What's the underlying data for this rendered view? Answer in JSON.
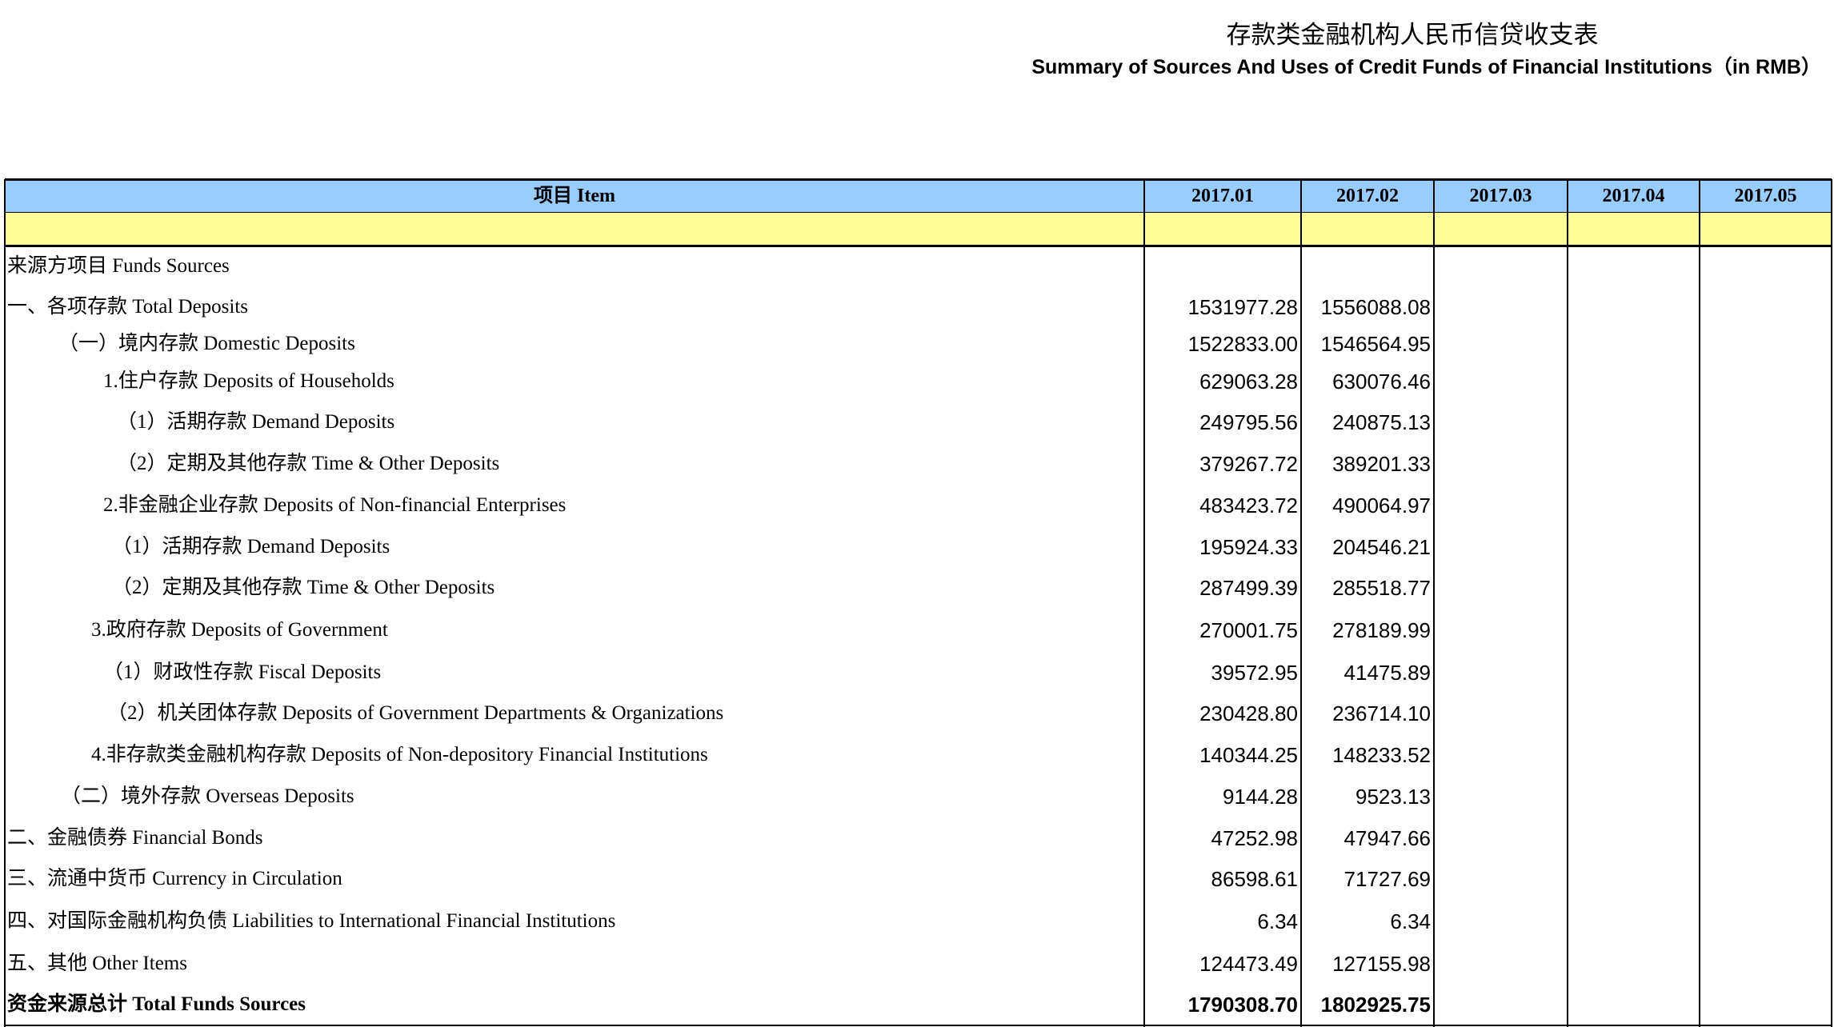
{
  "header": {
    "title": "存款类金融机构人民币信贷收支表",
    "subtitle": "Summary of Sources And Uses of Credit Funds of Financial Institutions（in RMB）"
  },
  "table": {
    "columns": [
      "项目 Item",
      "2017.01",
      "2017.02",
      "2017.03",
      "2017.04",
      "2017.05"
    ],
    "rows": [
      {
        "label": "来源方项目 Funds Sources"
      },
      {
        "label": "一、各项存款 Total Deposits",
        "values": [
          "1531977.28",
          "1556088.08"
        ]
      },
      {
        "label": "（一）境内存款 Domestic Deposits",
        "values": [
          "1522833.00",
          "1546564.95"
        ]
      },
      {
        "label": "1.住户存款 Deposits of Households",
        "values": [
          "629063.28",
          "630076.46"
        ]
      },
      {
        "label": "（1）活期存款 Demand  Deposits",
        "values": [
          "249795.56",
          "240875.13"
        ]
      },
      {
        "label": "（2）定期及其他存款 Time  & Other Deposits",
        "values": [
          "379267.72",
          "389201.33"
        ]
      },
      {
        "label": "2.非金融企业存款 Deposits of Non-financial Enterprises",
        "values": [
          "483423.72",
          "490064.97"
        ]
      },
      {
        "label": "（1）活期存款 Demand  Deposits",
        "values": [
          "195924.33",
          "204546.21"
        ]
      },
      {
        "label": "（2）定期及其他存款 Time  & Other Deposits",
        "values": [
          "287499.39",
          "285518.77"
        ]
      },
      {
        "label": "3.政府存款 Deposits of  Government",
        "values": [
          "270001.75",
          "278189.99"
        ]
      },
      {
        "label": "（1）财政性存款 Fiscal Deposits",
        "values": [
          "39572.95",
          "41475.89"
        ]
      },
      {
        "label": "（2）机关团体存款 Deposits of Government Departments & Organizations",
        "values": [
          "230428.80",
          "236714.10"
        ]
      },
      {
        "label": "4.非存款类金融机构存款 Deposits of Non-depository Financial Institutions",
        "values": [
          "140344.25",
          "148233.52"
        ]
      },
      {
        "label": "（二）境外存款 Overseas Deposits",
        "values": [
          "9144.28",
          "9523.13"
        ]
      },
      {
        "label": "二、金融债券 Financial Bonds",
        "values": [
          "47252.98",
          "47947.66"
        ]
      },
      {
        "label": "三、流通中货币 Currency in Circulation",
        "values": [
          "86598.61",
          "71727.69"
        ]
      },
      {
        "label": "四、对国际金融机构负债 Liabilities to International Financial Institutions",
        "values": [
          "6.34",
          "6.34"
        ]
      },
      {
        "label": "五、其他  Other Items",
        "values": [
          "124473.49",
          "127155.98"
        ]
      },
      {
        "label": "资金来源总计 Total Funds Sources",
        "values": [
          "1790308.70",
          "1802925.75"
        ]
      }
    ]
  }
}
